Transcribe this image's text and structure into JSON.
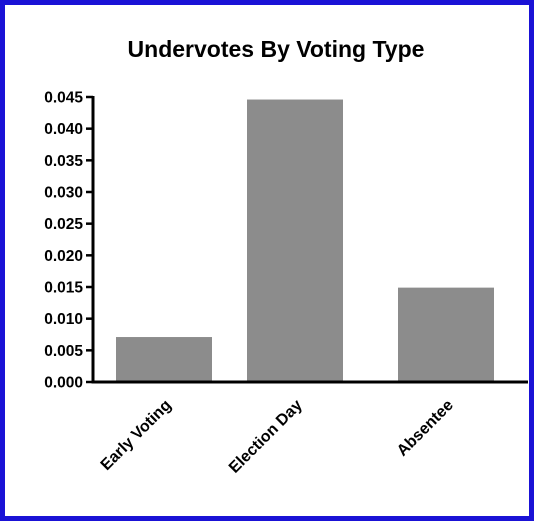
{
  "chart_data": {
    "type": "bar",
    "title": "Undervotes By Voting Type",
    "xlabel": "",
    "ylabel": "",
    "categories": [
      "Early Voting",
      "Election Day",
      "Absentee"
    ],
    "values": [
      0.0071,
      0.0446,
      0.0149
    ],
    "ylim": [
      0,
      0.045
    ],
    "yticks": [
      "0.000",
      "0.005",
      "0.010",
      "0.015",
      "0.020",
      "0.025",
      "0.030",
      "0.035",
      "0.040",
      "0.045"
    ],
    "grid": false,
    "legend": "none",
    "bar_color": "#8c8c8c",
    "frame_color": "#1a12d6"
  }
}
